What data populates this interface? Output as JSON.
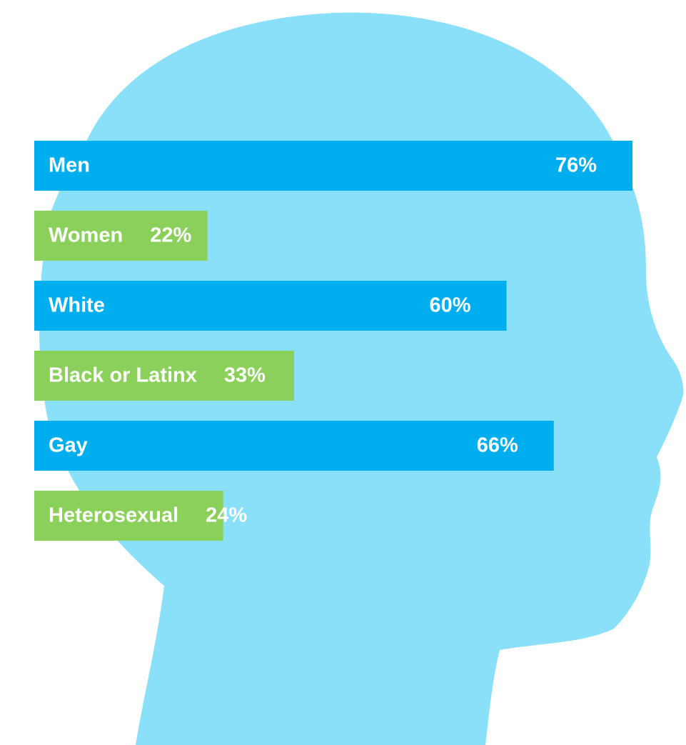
{
  "chart_data": {
    "type": "bar",
    "orientation": "horizontal",
    "categories": [
      "Men",
      "Women",
      "White",
      "Black or Latinx",
      "Gay",
      "Heterosexual"
    ],
    "values": [
      76,
      22,
      60,
      33,
      66,
      24
    ],
    "value_labels": [
      "76%",
      "22%",
      "60%",
      "33%",
      "66%",
      "24%"
    ],
    "colors": [
      "#00aef0",
      "#8cd05c",
      "#00aef0",
      "#8cd05c",
      "#00aef0",
      "#8cd05c"
    ]
  }
}
